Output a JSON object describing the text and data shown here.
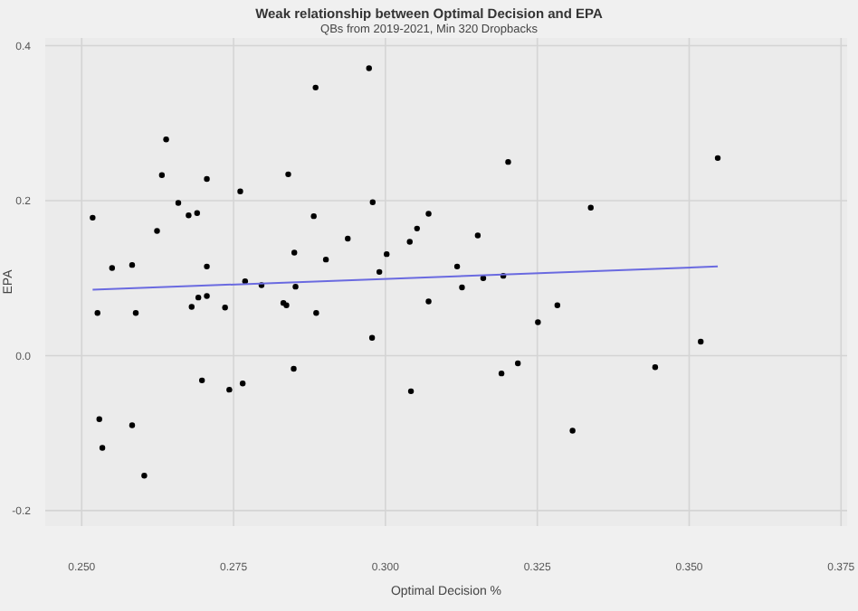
{
  "chart_data": {
    "type": "scatter",
    "title": "Weak relationship between Optimal Decision and EPA",
    "subtitle": "QBs from 2019-2021, Min 320 Dropbacks",
    "xlabel": "Optimal Decision %",
    "ylabel": "EPA",
    "xlim": [
      0.244,
      0.376
    ],
    "xticks": [
      {
        "value": 0.25,
        "label": "0.250"
      },
      {
        "value": 0.275,
        "label": "0.275"
      },
      {
        "value": 0.3,
        "label": "0.300"
      },
      {
        "value": 0.325,
        "label": "0.325"
      },
      {
        "value": 0.35,
        "label": "0.350"
      },
      {
        "value": 0.375,
        "label": "0.375"
      }
    ],
    "ylim": [
      -0.22,
      0.41
    ],
    "yticks": [
      {
        "value": -0.2,
        "label": "-0.2"
      },
      {
        "value": 0,
        "label": "0.0"
      },
      {
        "value": 0.2,
        "label": "0.2"
      },
      {
        "value": 0.4,
        "label": "0.4"
      }
    ],
    "grid": true,
    "legend": false,
    "series": [
      {
        "type": "scatter",
        "color": "#000000",
        "marker": "circle",
        "x": [
          0.2518,
          0.2632,
          0.2706,
          0.2659,
          0.2676,
          0.269,
          0.2624,
          0.2761,
          0.284,
          0.2882,
          0.2979,
          0.3071,
          0.2938,
          0.255,
          0.2583,
          0.2706,
          0.285,
          0.2902,
          0.3002,
          0.3052,
          0.304,
          0.299,
          0.2769,
          0.2796,
          0.2852,
          0.2526,
          0.2589,
          0.2681,
          0.2692,
          0.2706,
          0.2736,
          0.2832,
          0.2837,
          0.2886,
          0.3071,
          0.2978,
          0.2698,
          0.2743,
          0.2765,
          0.2849,
          0.3042,
          0.2529,
          0.2583,
          0.2534,
          0.2603,
          0.2639,
          0.2885,
          0.2973,
          0.3202,
          0.3547,
          0.3338,
          0.3152,
          0.3118,
          0.3194,
          0.3161,
          0.3126,
          0.3283,
          0.3251,
          0.3519,
          0.3218,
          0.3191,
          0.3444,
          0.3308
        ],
        "values": [
          0.178,
          0.233,
          0.228,
          0.197,
          0.181,
          0.184,
          0.161,
          0.212,
          0.234,
          0.18,
          0.198,
          0.183,
          0.151,
          0.113,
          0.117,
          0.115,
          0.133,
          0.124,
          0.131,
          0.164,
          0.147,
          0.108,
          0.096,
          0.091,
          0.089,
          0.055,
          0.055,
          0.063,
          0.075,
          0.077,
          0.062,
          0.068,
          0.065,
          0.055,
          0.07,
          0.023,
          -0.032,
          -0.044,
          -0.036,
          -0.017,
          -0.046,
          -0.082,
          -0.09,
          -0.119,
          -0.155,
          0.279,
          0.346,
          0.371,
          0.25,
          0.255,
          0.191,
          0.155,
          0.115,
          0.103,
          0.1,
          0.088,
          0.065,
          0.043,
          0.018,
          -0.01,
          -0.023,
          -0.015,
          -0.097
        ]
      },
      {
        "type": "line",
        "color": "#6a6ae0",
        "marker": "none",
        "line_style": "solid",
        "x": [
          0.2518,
          0.3547
        ],
        "values": [
          0.085,
          0.115
        ]
      }
    ]
  }
}
